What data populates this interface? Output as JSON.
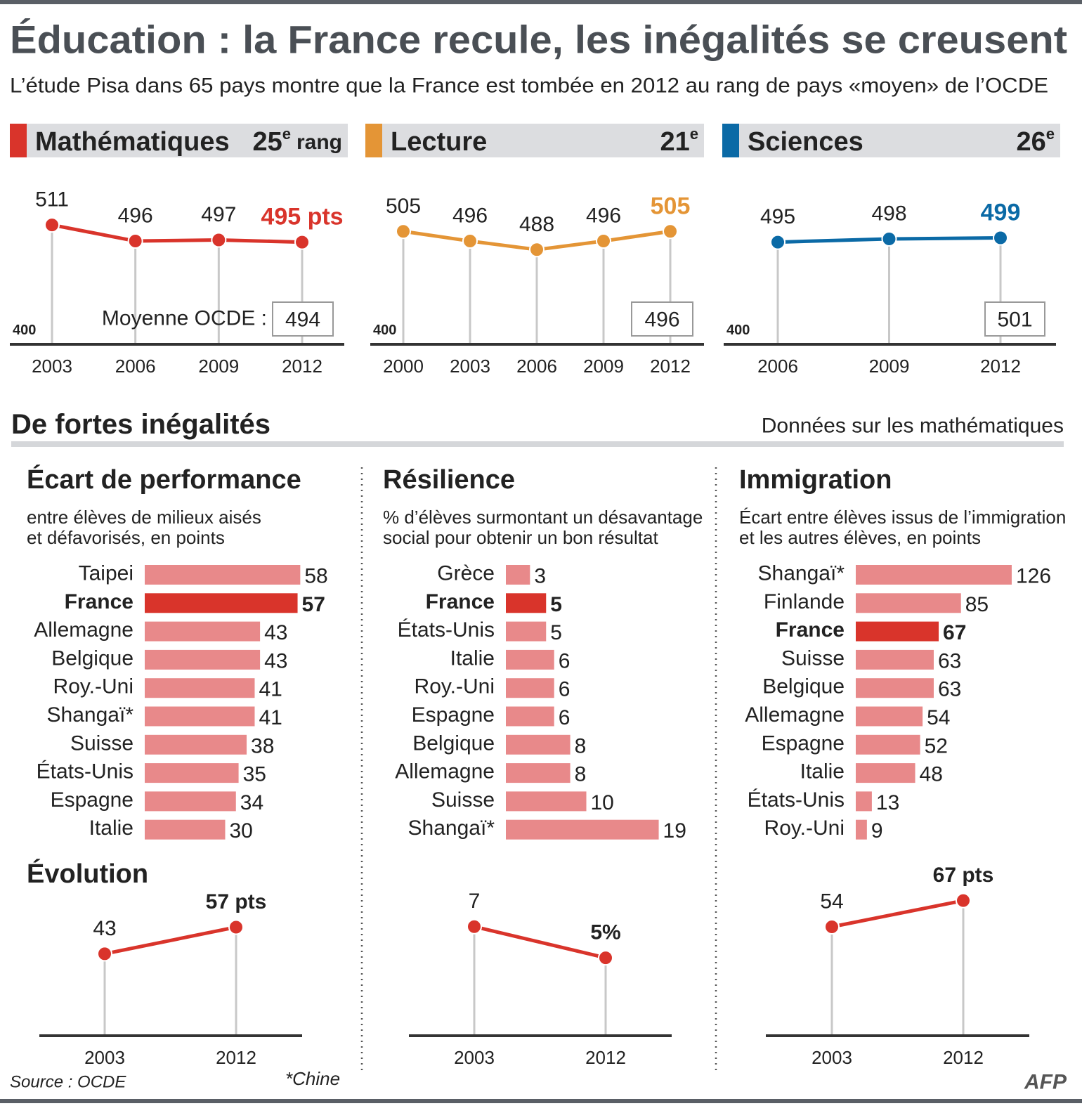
{
  "title": "Éducation : la France recule, les inégalités se creusent",
  "subtitle": "L’étude Pisa dans 65 pays montre que la France est tombée en 2012 au rang de pays «moyen» de l’OCDE",
  "section_title": "De fortes inégalités",
  "section_note": "Données sur les mathématiques",
  "source": "Source : OCDE",
  "footnote": "*Chine",
  "credit": "AFP",
  "chart_data": [
    {
      "type": "line",
      "title": "Mathématiques",
      "rank": "25",
      "rank_suffix": "e",
      "rank_unit": "rang",
      "x": [
        "2003",
        "2006",
        "2009",
        "2012"
      ],
      "values": [
        511,
        496,
        497,
        495
      ],
      "value_labels": [
        "511",
        "496",
        "497",
        "495 pts"
      ],
      "ylim": [
        400,
        530
      ],
      "yticks": [
        400
      ],
      "color": "#d9342b",
      "oecd_label": "Moyenne OCDE :",
      "oecd_average": 494
    },
    {
      "type": "line",
      "title": "Lecture",
      "rank": "21",
      "rank_suffix": "e",
      "x": [
        "2000",
        "2003",
        "2006",
        "2009",
        "2012"
      ],
      "values": [
        505,
        496,
        488,
        496,
        505
      ],
      "ylim": [
        400,
        530
      ],
      "yticks": [
        400
      ],
      "color": "#e49536",
      "oecd_average": 496
    },
    {
      "type": "line",
      "title": "Sciences",
      "rank": "26",
      "rank_suffix": "e",
      "x": [
        "2006",
        "2009",
        "2012"
      ],
      "values": [
        495,
        498,
        499
      ],
      "ylim": [
        400,
        530
      ],
      "yticks": [
        400
      ],
      "color": "#0b6aa6",
      "oecd_average": 501
    },
    {
      "type": "barh",
      "title": "Écart de performance",
      "subtitle": [
        "entre élèves de milieux aisés",
        "et défavorisés, en points"
      ],
      "categories": [
        "Taipei",
        "France",
        "Allemagne",
        "Belgique",
        "Roy.-Uni",
        "Shangaï*",
        "Suisse",
        "États-Unis",
        "Espagne",
        "Italie"
      ],
      "values": [
        58,
        57,
        43,
        43,
        41,
        41,
        38,
        35,
        34,
        30
      ],
      "xlim": [
        0,
        60
      ],
      "color": "#e8898a",
      "highlight_index": 1,
      "highlight_color": "#d9342b"
    },
    {
      "type": "barh",
      "title": "Résilience",
      "subtitle": [
        "% d’élèves surmontant un désavantage",
        "social pour obtenir un bon résultat"
      ],
      "categories": [
        "Grèce",
        "France",
        "États-Unis",
        "Italie",
        "Roy.-Uni",
        "Espagne",
        "Belgique",
        "Allemagne",
        "Suisse",
        "Shangaï*"
      ],
      "values": [
        3,
        5,
        5,
        6,
        6,
        6,
        8,
        8,
        10,
        19
      ],
      "xlim": [
        0,
        20
      ],
      "color": "#e8898a",
      "highlight_index": 1,
      "highlight_color": "#d9342b"
    },
    {
      "type": "barh",
      "title": "Immigration",
      "subtitle": [
        "Écart entre élèves issus de l’immigration",
        "et les autres élèves, en points"
      ],
      "categories": [
        "Shangaï*",
        "Finlande",
        "France",
        "Suisse",
        "Belgique",
        "Allemagne",
        "Espagne",
        "Italie",
        "États-Unis",
        "Roy.-Uni"
      ],
      "values": [
        126,
        85,
        67,
        63,
        63,
        54,
        52,
        48,
        13,
        9
      ],
      "xlim": [
        0,
        130
      ],
      "color": "#e8898a",
      "highlight_index": 2,
      "highlight_color": "#d9342b"
    },
    {
      "type": "line",
      "title": "Évolution",
      "x": [
        "2003",
        "2012"
      ],
      "values": [
        43,
        57
      ],
      "value_labels": [
        "43",
        "57 pts"
      ],
      "ylim": [
        0,
        90
      ],
      "color": "#d9342b"
    },
    {
      "type": "line",
      "x": [
        "2003",
        "2012"
      ],
      "values": [
        7,
        5
      ],
      "value_labels": [
        "7",
        "5%"
      ],
      "ylim": [
        0,
        11
      ],
      "color": "#d9342b"
    },
    {
      "type": "line",
      "x": [
        "2003",
        "2012"
      ],
      "values": [
        54,
        67
      ],
      "value_labels": [
        "54",
        "67 pts"
      ],
      "ylim": [
        0,
        85
      ],
      "color": "#d9342b"
    }
  ]
}
